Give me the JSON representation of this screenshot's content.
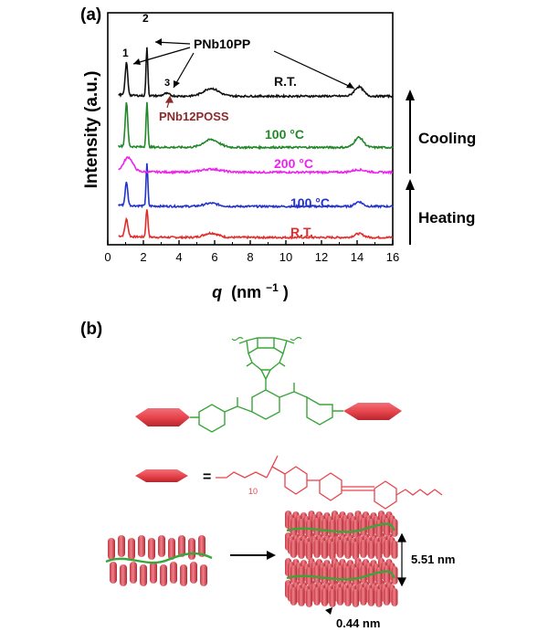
{
  "panel_a": {
    "label": "(a)",
    "chart_data": {
      "type": "line",
      "ylabel": "Intensity (a.u.)",
      "xlabel_main": "q",
      "xlabel_unit": "(nm",
      "xlabel_exp": "−1",
      "xlabel_close": ")",
      "xlim": [
        0,
        16
      ],
      "x_ticks": [
        "0",
        "2",
        "4",
        "6",
        "8",
        "10",
        "12",
        "14",
        "16"
      ],
      "peak_labels": [
        "1",
        "2",
        "3"
      ],
      "annotations": [
        "PNb10PP",
        "PNb12POSS"
      ],
      "series": [
        {
          "name": "R.T.",
          "color": "#e32b2b",
          "offset": 0,
          "peaks": [
            [
              1.05,
              0.55,
              0.12
            ],
            [
              2.2,
              0.9,
              0.08
            ],
            [
              5.8,
              0.14,
              0.55
            ],
            [
              14.1,
              0.12,
              0.35
            ]
          ]
        },
        {
          "name": "100 °C",
          "color": "#2233cc",
          "offset": 1.0,
          "peaks": [
            [
              1.05,
              0.75,
              0.1
            ],
            [
              2.2,
              1.35,
              0.07
            ],
            [
              5.8,
              0.1,
              0.55
            ],
            [
              14.1,
              0.15,
              0.3
            ]
          ]
        },
        {
          "name": "200 °C",
          "color": "#ee22ee",
          "offset": 2.1,
          "peaks": [
            [
              1.15,
              0.45,
              0.35
            ],
            [
              5.8,
              0.1,
              0.8
            ],
            [
              14.1,
              0.08,
              0.5
            ]
          ]
        },
        {
          "name": "100 °C",
          "color": "#22882a",
          "offset": 2.9,
          "peaks": [
            [
              1.05,
              1.4,
              0.1
            ],
            [
              2.2,
              1.45,
              0.07
            ],
            [
              5.8,
              0.25,
              0.6
            ],
            [
              14.1,
              0.32,
              0.35
            ]
          ]
        },
        {
          "name": "R.T.",
          "color": "#111111",
          "offset": 4.55,
          "peaks": [
            [
              1.05,
              1.05,
              0.1
            ],
            [
              2.2,
              1.55,
              0.07
            ],
            [
              3.3,
              0.08,
              0.25
            ],
            [
              5.8,
              0.25,
              0.6
            ],
            [
              14.1,
              0.3,
              0.35
            ]
          ]
        }
      ],
      "process_labels": [
        "Cooling",
        "Heating"
      ]
    }
  },
  "panel_b": {
    "label": "(b)",
    "spacing_labels": [
      "5.51 nm",
      "0.44 nm"
    ],
    "side_chain_equals": "=",
    "spacer_sub": "10"
  },
  "colors": {
    "green": "#3aa53a",
    "red": "#e8464e",
    "mesogen_red": "#e8454d"
  }
}
